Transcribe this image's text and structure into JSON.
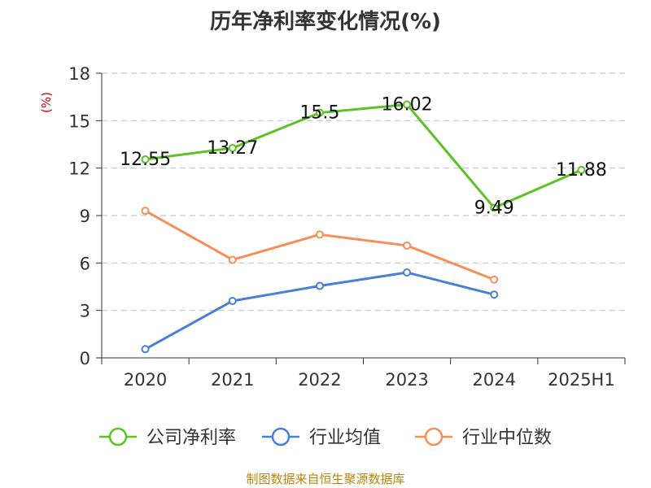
{
  "chart_data": {
    "type": "line",
    "title": "历年净利率变化情况(%)",
    "ylabel": "(%)",
    "categories": [
      "2020",
      "2021",
      "2022",
      "2023",
      "2024",
      "2025H1"
    ],
    "ylim": [
      0,
      18
    ],
    "yticks": [
      0,
      3,
      6,
      9,
      12,
      15,
      18
    ],
    "grid": "horizontal-dashed",
    "legend_position": "bottom",
    "series": [
      {
        "name": "公司净利率",
        "color": "#5dc226",
        "values": [
          12.55,
          13.27,
          15.5,
          16.02,
          9.49,
          11.88
        ],
        "labels": [
          "12.55",
          "13.27",
          "15.5",
          "16.02",
          "9.49",
          "11.88"
        ]
      },
      {
        "name": "行业均值",
        "color": "#4a7fd8",
        "values": [
          0.55,
          3.6,
          4.55,
          5.4,
          4.0,
          null
        ]
      },
      {
        "name": "行业中位数",
        "color": "#f58f5a",
        "values": [
          9.3,
          6.2,
          7.8,
          7.1,
          4.95,
          null
        ]
      }
    ]
  },
  "source": "制图数据来自恒生聚源数据库"
}
